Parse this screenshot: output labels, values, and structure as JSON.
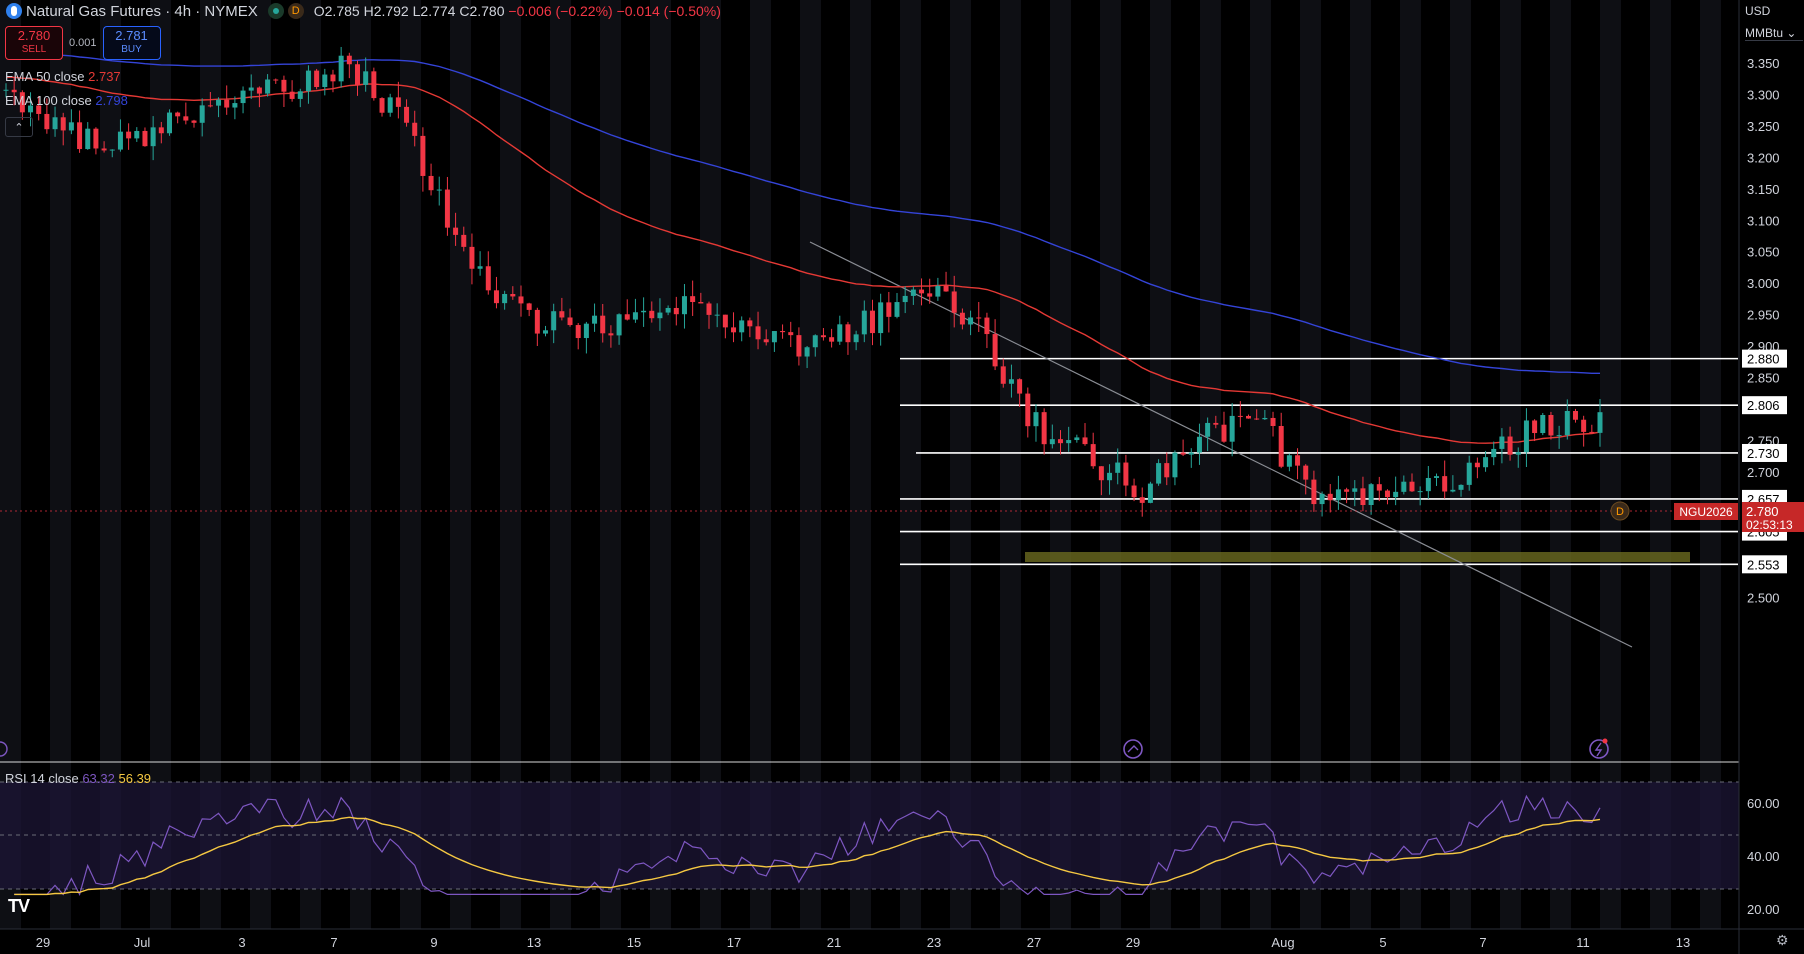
{
  "header": {
    "title": "Natural Gas Futures · 4h · NYMEX",
    "badge": "D",
    "open": "O2.785",
    "high": "H2.792",
    "low": "L2.774",
    "close": "C2.780",
    "change": "−0.006 (−0.22%)",
    "change2": "−0.014 (−0.50%)"
  },
  "trade": {
    "sell_price": "2.780",
    "sell_label": "SELL",
    "spread": "0.001",
    "buy_price": "2.781",
    "buy_label": "BUY"
  },
  "indicators": {
    "ema50_label": "EMA 50 close",
    "ema50_value": "2.737",
    "ema100_label": "EMA 100 close",
    "ema100_value": "2.798",
    "collapse_icon": "chevron-up-icon"
  },
  "rsi": {
    "label": "RSI 14 close",
    "value1": "63.32",
    "value2": "56.39",
    "ticks": [
      "60.00",
      "40.00",
      "20.00"
    ]
  },
  "price_axis": {
    "currency": "USD",
    "unit": "MMBtu",
    "ticks": [
      "3.350",
      "3.300",
      "3.250",
      "3.200",
      "3.150",
      "3.100",
      "3.050",
      "3.000",
      "2.950",
      "2.900",
      "2.850",
      "2.750",
      "2.700",
      "2.650",
      "2.600",
      "2.550",
      "2.500"
    ],
    "symbol_tag": "NGU2026",
    "last_price": "2.780",
    "countdown": "02:53:13"
  },
  "levels": [
    "2.880",
    "2.806",
    "2.730",
    "2.657",
    "2.605",
    "2.553"
  ],
  "time_axis": [
    "29",
    "Jul",
    "3",
    "7",
    "9",
    "13",
    "15",
    "17",
    "21",
    "23",
    "27",
    "29",
    "Aug",
    "5",
    "7",
    "11",
    "13"
  ],
  "colors": {
    "up": "#26a69a",
    "down": "#f23645",
    "ema50": "#e53935",
    "ema100": "#3444d8",
    "rsi": "#7e57c2",
    "rsi_ma": "#f5c842",
    "zone": "#6b6a1f"
  },
  "chart_data": {
    "type": "candlestick",
    "title": "Natural Gas Futures · 4h · NYMEX",
    "ylim": [
      2.47,
      3.4
    ],
    "x_labels": [
      "29",
      "Jul",
      "3",
      "7",
      "9",
      "13",
      "15",
      "17",
      "21",
      "23",
      "27",
      "29",
      "Aug",
      "5",
      "7",
      "11",
      "13"
    ],
    "closes_approx": [
      3.3,
      3.24,
      3.22,
      3.26,
      3.29,
      3.31,
      3.35,
      3.26,
      3.04,
      2.95,
      2.93,
      2.94,
      2.96,
      2.93,
      2.9,
      2.93,
      3.0,
      2.94,
      2.78,
      2.72,
      2.67,
      2.76,
      2.78,
      2.66,
      2.66,
      2.67,
      2.72,
      2.78,
      2.78
    ],
    "horizontal_levels": [
      2.88,
      2.806,
      2.73,
      2.657,
      2.605,
      2.553
    ],
    "series": [
      {
        "name": "EMA 50 close",
        "last": 2.737
      },
      {
        "name": "EMA 100 close",
        "last": 2.798
      },
      {
        "name": "RSI 14 close",
        "last": 63.32
      }
    ]
  }
}
